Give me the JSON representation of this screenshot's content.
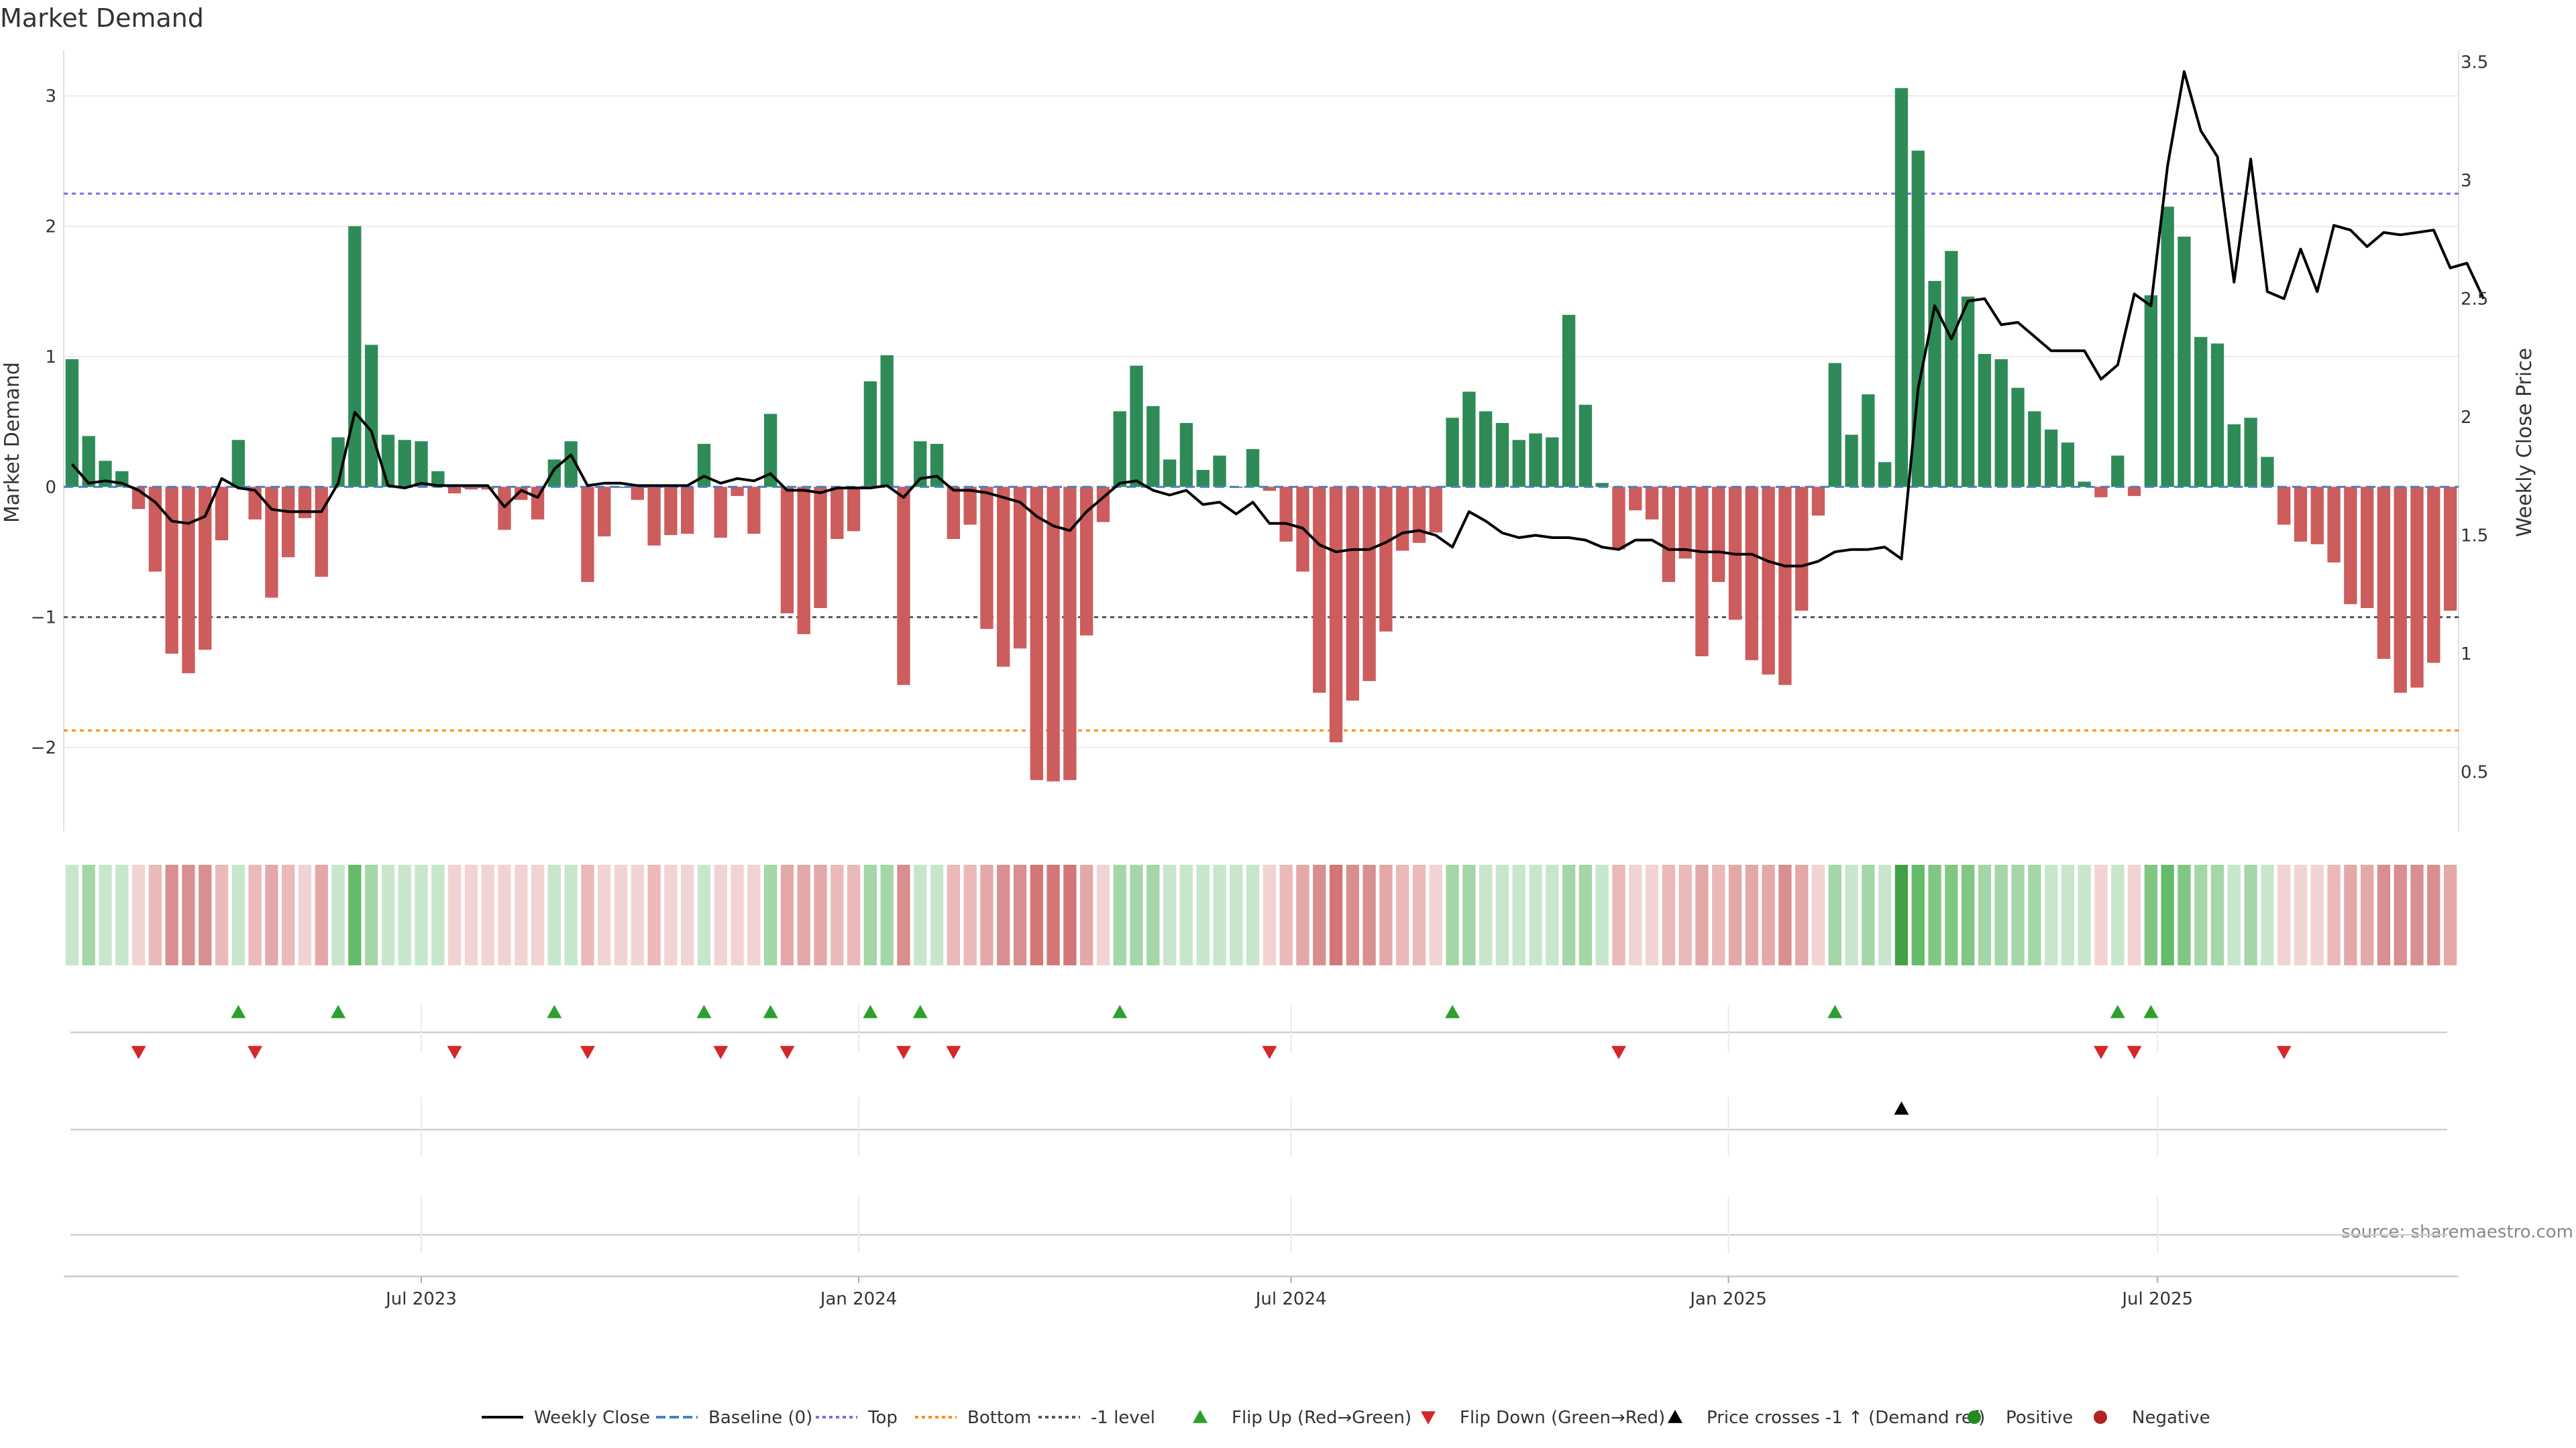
{
  "chart_data": {
    "type": "bar",
    "title": "Market Demand",
    "ylabel_left": "Market Demand",
    "ylabel_right": "Weekly Close Price",
    "source": "source: sharemaestro.com",
    "ylim_left": [
      -2.55,
      3.35
    ],
    "ylim_right": [
      0.3,
      3.55
    ],
    "yticks_left": [
      {
        "v": 3,
        "label": "3"
      },
      {
        "v": 2,
        "label": "2"
      },
      {
        "v": 1,
        "label": "1"
      },
      {
        "v": 0,
        "label": "0"
      },
      {
        "v": -1,
        "label": "−1"
      },
      {
        "v": -2,
        "label": "−2"
      }
    ],
    "yticks_right": [
      {
        "v": 3.5,
        "label": "3.5"
      },
      {
        "v": 3,
        "label": "3"
      },
      {
        "v": 2.5,
        "label": "2.5"
      },
      {
        "v": 2,
        "label": "2"
      },
      {
        "v": 1.5,
        "label": "1.5"
      },
      {
        "v": 1,
        "label": "1"
      },
      {
        "v": 0.5,
        "label": "0.5"
      }
    ],
    "xticks": [
      {
        "label": "Jul 2023",
        "week": 21
      },
      {
        "label": "Jan 2024",
        "week": 47.3
      },
      {
        "label": "Jul 2024",
        "week": 73.3
      },
      {
        "label": "Jan 2025",
        "week": 99.6
      },
      {
        "label": "Jul 2025",
        "week": 125.4
      }
    ],
    "reference_lines": {
      "top": 2.25,
      "bottom": -1.87,
      "minus_one": -1.0,
      "baseline": 0
    },
    "demand": [
      0.98,
      0.39,
      0.2,
      0.12,
      -0.17,
      -0.65,
      -1.28,
      -1.43,
      -1.25,
      -0.41,
      0.36,
      -0.25,
      -0.85,
      -0.54,
      -0.24,
      -0.69,
      0.38,
      2.0,
      1.09,
      0.4,
      0.36,
      0.35,
      0.12,
      -0.05,
      -0.02,
      -0.02,
      -0.33,
      -0.1,
      -0.25,
      0.21,
      0.35,
      -0.73,
      -0.38,
      0,
      -0.1,
      -0.45,
      -0.37,
      -0.36,
      0.33,
      -0.39,
      -0.07,
      -0.36,
      0.56,
      -0.97,
      -1.13,
      -0.93,
      -0.4,
      -0.34,
      0.81,
      1.01,
      -1.52,
      0.35,
      0.33,
      -0.4,
      -0.29,
      -1.09,
      -1.38,
      -1.24,
      -2.25,
      -2.26,
      -2.25,
      -1.14,
      -0.27,
      0.58,
      0.93,
      0.62,
      0.21,
      0.49,
      0.13,
      0.24,
      0,
      0.29,
      -0.03,
      -0.42,
      -0.65,
      -1.58,
      -1.96,
      -1.64,
      -1.49,
      -1.11,
      -0.49,
      -0.43,
      -0.35,
      0.53,
      0.73,
      0.58,
      0.49,
      0.36,
      0.41,
      0.38,
      1.32,
      0.63,
      0.03,
      -0.48,
      -0.18,
      -0.25,
      -0.73,
      -0.55,
      -1.3,
      -0.73,
      -1.02,
      -1.33,
      -1.44,
      -1.52,
      -0.95,
      -0.22,
      0.95,
      0.4,
      0.71,
      0.19,
      3.06,
      2.58,
      1.58,
      1.81,
      1.46,
      1.02,
      0.98,
      0.76,
      0.58,
      0.44,
      0.34,
      0.04,
      -0.08,
      0.24,
      -0.07,
      1.47,
      2.15,
      1.92,
      1.15,
      1.1,
      0.48,
      0.53,
      0.23,
      -0.29,
      -0.42,
      -0.44,
      -0.58,
      -0.9,
      -0.93,
      -1.32,
      -1.58,
      -1.54,
      -1.35,
      -0.95
    ],
    "price": [
      1.8,
      1.72,
      1.73,
      1.72,
      1.69,
      1.64,
      1.56,
      1.55,
      1.58,
      1.74,
      1.7,
      1.69,
      1.61,
      1.6,
      1.6,
      1.6,
      1.72,
      2.02,
      1.94,
      1.71,
      1.7,
      1.72,
      1.71,
      1.71,
      1.71,
      1.71,
      1.62,
      1.69,
      1.66,
      1.78,
      1.84,
      1.71,
      1.72,
      1.72,
      1.71,
      1.71,
      1.71,
      1.71,
      1.75,
      1.72,
      1.74,
      1.73,
      1.76,
      1.69,
      1.69,
      1.68,
      1.7,
      1.7,
      1.7,
      1.71,
      1.66,
      1.74,
      1.75,
      1.69,
      1.69,
      1.68,
      1.66,
      1.64,
      1.58,
      1.54,
      1.52,
      1.6,
      1.66,
      1.72,
      1.73,
      1.69,
      1.67,
      1.69,
      1.63,
      1.64,
      1.59,
      1.64,
      1.55,
      1.55,
      1.53,
      1.46,
      1.43,
      1.44,
      1.44,
      1.47,
      1.51,
      1.52,
      1.5,
      1.45,
      1.6,
      1.56,
      1.51,
      1.49,
      1.5,
      1.49,
      1.49,
      1.48,
      1.45,
      1.44,
      1.48,
      1.48,
      1.44,
      1.44,
      1.43,
      1.43,
      1.42,
      1.42,
      1.39,
      1.37,
      1.37,
      1.39,
      1.43,
      1.44,
      1.44,
      1.45,
      1.4,
      2.12,
      2.47,
      2.33,
      2.49,
      2.5,
      2.39,
      2.4,
      2.34,
      2.28,
      2.28,
      2.28,
      2.16,
      2.22,
      2.52,
      2.47,
      3.06,
      3.46,
      3.21,
      3.1,
      2.57,
      3.09,
      2.53,
      2.5,
      2.71,
      2.53,
      2.81,
      2.79,
      2.72,
      2.78,
      2.77,
      2.78,
      2.79,
      2.63,
      2.65,
      2.5
    ],
    "strip_colors": [
      "#c8e6cc",
      "#a5d6a7",
      "#c8e6cc",
      "#c8e6cc",
      "#f2d3d3",
      "#ebb9b9",
      "#d98f8f",
      "#d98f8f",
      "#d98f8f",
      "#ebb9b9",
      "#c8e6cc",
      "#ebb9b9",
      "#e5a8a8",
      "#ebb9b9",
      "#f2d3d3",
      "#e5a8a8",
      "#c8e6cc",
      "#66bb6a",
      "#a5d6a7",
      "#c8e6cc",
      "#c8e6cc",
      "#c8e6cc",
      "#c8e6cc",
      "#f2d3d3",
      "#f2d3d3",
      "#f2d3d3",
      "#f2d3d3",
      "#f2d3d3",
      "#f2d3d3",
      "#c8e6cc",
      "#c8e6cc",
      "#ebb9b9",
      "#f2d3d3",
      "#f2d3d3",
      "#f2d3d3",
      "#ebb9b9",
      "#f2d3d3",
      "#f2d3d3",
      "#c8e6cc",
      "#f2d3d3",
      "#f2d3d3",
      "#f2d3d3",
      "#a5d6a7",
      "#e5a8a8",
      "#e5a8a8",
      "#e5a8a8",
      "#ebb9b9",
      "#ebb9b9",
      "#a5d6a7",
      "#a5d6a7",
      "#d98f8f",
      "#c8e6cc",
      "#c8e6cc",
      "#ebb9b9",
      "#ebb9b9",
      "#e5a8a8",
      "#d98f8f",
      "#d98f8f",
      "#d27676",
      "#d27676",
      "#d27676",
      "#e5a8a8",
      "#f2d3d3",
      "#a5d6a7",
      "#a5d6a7",
      "#a5d6a7",
      "#c8e6cc",
      "#c8e6cc",
      "#c8e6cc",
      "#c8e6cc",
      "#c8e6cc",
      "#c8e6cc",
      "#f2d3d3",
      "#ebb9b9",
      "#e5a8a8",
      "#d98f8f",
      "#d27676",
      "#d98f8f",
      "#d98f8f",
      "#e5a8a8",
      "#ebb9b9",
      "#ebb9b9",
      "#f2d3d3",
      "#a5d6a7",
      "#a5d6a7",
      "#c8e6cc",
      "#c8e6cc",
      "#c8e6cc",
      "#c8e6cc",
      "#c8e6cc",
      "#a5d6a7",
      "#a5d6a7",
      "#c8e6cc",
      "#ebb9b9",
      "#f2d3d3",
      "#f2d3d3",
      "#ebb9b9",
      "#ebb9b9",
      "#e5a8a8",
      "#ebb9b9",
      "#e5a8a8",
      "#e5a8a8",
      "#e5a8a8",
      "#d98f8f",
      "#e5a8a8",
      "#f2d3d3",
      "#a5d6a7",
      "#c8e6cc",
      "#a5d6a7",
      "#c8e6cc",
      "#43a047",
      "#66bb6a",
      "#81c784",
      "#81c784",
      "#81c784",
      "#a5d6a7",
      "#a5d6a7",
      "#a5d6a7",
      "#a5d6a7",
      "#c8e6cc",
      "#c8e6cc",
      "#c8e6cc",
      "#f2d3d3",
      "#c8e6cc",
      "#f2d3d3",
      "#81c784",
      "#66bb6a",
      "#81c784",
      "#a5d6a7",
      "#a5d6a7",
      "#c8e6cc",
      "#a5d6a7",
      "#c8e6cc",
      "#f2d3d3",
      "#f2d3d3",
      "#f2d3d3",
      "#ebb9b9",
      "#e5a8a8",
      "#e5a8a8",
      "#d98f8f",
      "#d98f8f",
      "#d98f8f",
      "#d98f8f",
      "#e5a8a8"
    ],
    "flip_up_weeks": [
      10,
      16,
      29,
      38,
      42,
      48,
      51,
      63,
      83,
      106,
      123,
      125
    ],
    "flip_down_weeks": [
      4,
      11,
      23,
      31,
      39,
      43,
      50,
      53,
      72,
      93,
      122,
      124,
      133
    ],
    "price_cross_weeks": [
      110
    ],
    "colors": {
      "positive": "#2e8b57",
      "negative": "#cd5c5c",
      "price_line": "#000000",
      "top_line": "#7b68ee",
      "bottom_line": "#ff8c00",
      "minus_one_line": "#555555",
      "baseline": "#4a7fc1",
      "flip_up": "#2ca02c",
      "flip_down": "#d62728",
      "cross": "#000000",
      "positive_dot": "#228b22",
      "negative_dot": "#b22222"
    },
    "legend": [
      {
        "label": "Weekly Close",
        "kind": "line-solid",
        "color": "#000000"
      },
      {
        "label": "Baseline (0)",
        "kind": "line-dash",
        "color": "#4a7fc1"
      },
      {
        "label": "Top",
        "kind": "line-dot",
        "color": "#7b68ee"
      },
      {
        "label": "Bottom",
        "kind": "line-dot",
        "color": "#ff8c00"
      },
      {
        "label": "-1 level",
        "kind": "line-dot",
        "color": "#555555"
      },
      {
        "label": "Flip Up (Red→Green)",
        "kind": "tri-up",
        "color": "#2ca02c"
      },
      {
        "label": "Flip Down (Green→Red)",
        "kind": "tri-down",
        "color": "#d62728"
      },
      {
        "label": "Price crosses -1 ↑ (Demand ref)",
        "kind": "tri-up",
        "color": "#000000"
      },
      {
        "label": "Positive",
        "kind": "dot",
        "color": "#228b22"
      },
      {
        "label": "Negative",
        "kind": "dot",
        "color": "#b22222"
      }
    ]
  }
}
